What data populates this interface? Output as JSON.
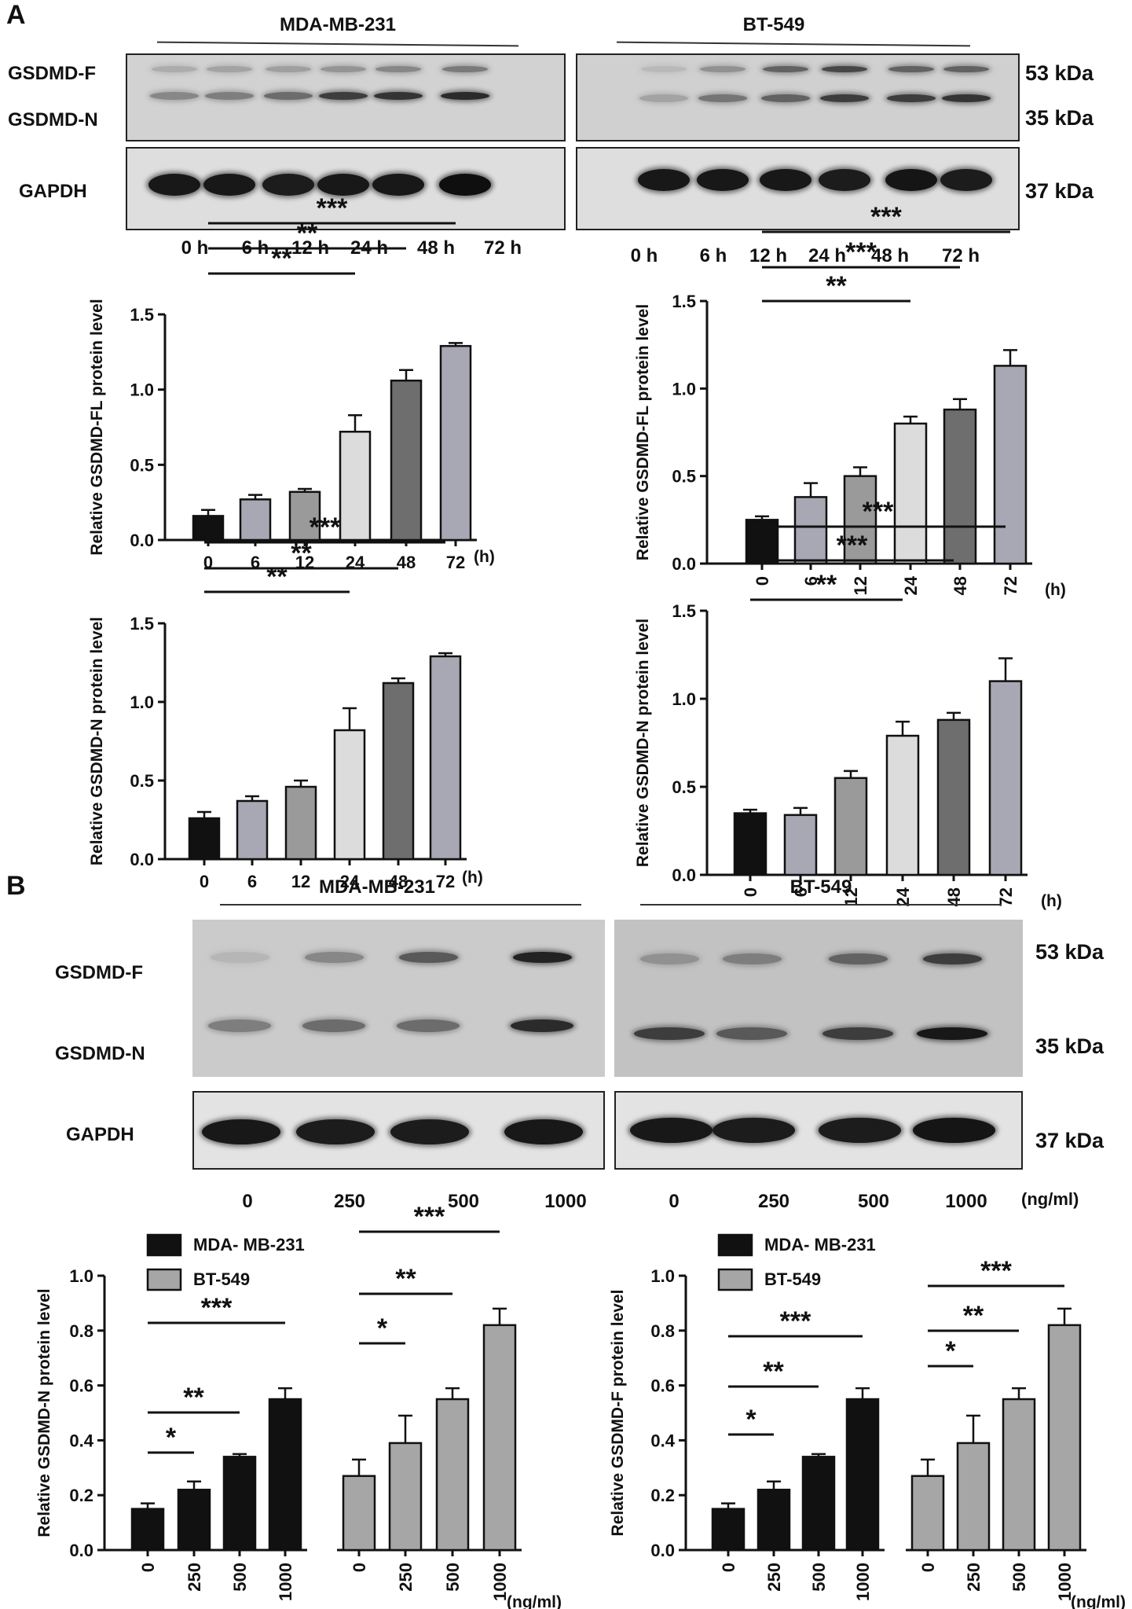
{
  "panel_a": {
    "letter": "A",
    "cell_line_left": "MDA-MB-231",
    "cell_line_right": "BT-549",
    "row_labels": {
      "gsdmd_f": "GSDMD-F",
      "gsdmd_n": "GSDMD-N",
      "gapdh": "GAPDH"
    },
    "kda": {
      "k53": "53 kDa",
      "k35": "35 kDa",
      "k37": "37 kDa"
    },
    "lanes": [
      "0 h",
      "6 h",
      "12 h",
      "24 h",
      "48 h",
      "72 h"
    ],
    "blot_levels": {
      "left_f": [
        0.15,
        0.2,
        0.22,
        0.28,
        0.35,
        0.42
      ],
      "left_n": [
        0.35,
        0.4,
        0.5,
        0.75,
        0.8,
        0.85
      ],
      "left_g": [
        0.95,
        0.95,
        0.93,
        0.95,
        0.95,
        1.0
      ],
      "right_f": [
        0.08,
        0.3,
        0.55,
        0.7,
        0.55,
        0.55
      ],
      "right_n": [
        0.2,
        0.45,
        0.55,
        0.75,
        0.75,
        0.8
      ],
      "right_g": [
        0.95,
        0.95,
        0.95,
        0.93,
        0.97,
        0.93
      ]
    }
  },
  "panel_b": {
    "letter": "B",
    "cell_line_left": "MDA-MB-231",
    "cell_line_right": "BT-549",
    "row_labels": {
      "gsdmd_f": "GSDMD-F",
      "gsdmd_n": "GSDMD-N",
      "gapdh": "GAPDH"
    },
    "kda": {
      "k53": "53 kDa",
      "k35": "35 kDa",
      "k37": "37 kDa"
    },
    "lanes": [
      "0",
      "250",
      "500",
      "1000"
    ],
    "unit": "(ng/ml)",
    "blot_levels": {
      "left_f": [
        0.1,
        0.35,
        0.6,
        0.9
      ],
      "left_n": [
        0.4,
        0.5,
        0.5,
        0.85
      ],
      "left_g": [
        0.95,
        0.93,
        0.93,
        0.95
      ],
      "right_f": [
        0.3,
        0.4,
        0.55,
        0.75
      ],
      "right_n": [
        0.75,
        0.6,
        0.75,
        0.95
      ],
      "right_g": [
        0.95,
        0.93,
        0.93,
        0.97
      ]
    }
  },
  "colors": {
    "black": "#111111",
    "dark_gray": "#6e6e6e",
    "mid_gray": "#9a9a9a",
    "light_gray": "#dcdcdc",
    "lavender_gray": "#a8a8b4",
    "bt549_gray": "#a6a6a6"
  },
  "chart_data": [
    {
      "type": "bar",
      "id": "a-mda-fl",
      "ylabel": "Relative GSDMD-FL protein level",
      "categories": [
        "0",
        "6",
        "12",
        "24",
        "48",
        "72"
      ],
      "unit": "(h)",
      "values": [
        0.16,
        0.27,
        0.32,
        0.72,
        1.06,
        1.29
      ],
      "errors": [
        0.04,
        0.03,
        0.02,
        0.11,
        0.07,
        0.02
      ],
      "bar_colors": [
        "black",
        "lavender_gray",
        "mid_gray",
        "light_gray",
        "dark_gray",
        "lavender_gray"
      ],
      "ylim": [
        0,
        1.5
      ],
      "yticks": [
        "0.0",
        "0.5",
        "1.0",
        "1.5"
      ],
      "significance": [
        {
          "from": 0,
          "to": 5,
          "label": "***"
        },
        {
          "from": 0,
          "to": 4,
          "label": "**"
        },
        {
          "from": 0,
          "to": 3,
          "label": "**"
        }
      ]
    },
    {
      "type": "bar",
      "id": "a-bt-fl",
      "ylabel": "Relative GSDMD-FL protein level",
      "categories": [
        "0",
        "6",
        "12",
        "24",
        "48",
        "72"
      ],
      "unit": "(h)",
      "values": [
        0.25,
        0.38,
        0.5,
        0.8,
        0.88,
        1.13
      ],
      "errors": [
        0.02,
        0.08,
        0.05,
        0.04,
        0.06,
        0.09
      ],
      "bar_colors": [
        "black",
        "lavender_gray",
        "mid_gray",
        "light_gray",
        "dark_gray",
        "lavender_gray"
      ],
      "ylim": [
        0,
        1.5
      ],
      "yticks": [
        "0.0",
        "0.5",
        "1.0",
        "1.5"
      ],
      "significance": [
        {
          "from": 0,
          "to": 5,
          "label": "***"
        },
        {
          "from": 0,
          "to": 4,
          "label": "***"
        },
        {
          "from": 0,
          "to": 3,
          "label": "**"
        }
      ]
    },
    {
      "type": "bar",
      "id": "a-mda-n",
      "ylabel": "Relative GSDMD-N protein level",
      "categories": [
        "0",
        "6",
        "12",
        "24",
        "48",
        "72"
      ],
      "unit": "(h)",
      "values": [
        0.26,
        0.37,
        0.46,
        0.82,
        1.12,
        1.29
      ],
      "errors": [
        0.04,
        0.03,
        0.04,
        0.14,
        0.03,
        0.02
      ],
      "bar_colors": [
        "black",
        "lavender_gray",
        "mid_gray",
        "light_gray",
        "dark_gray",
        "lavender_gray"
      ],
      "ylim": [
        0,
        1.5
      ],
      "yticks": [
        "0.0",
        "0.5",
        "1.0",
        "1.5"
      ],
      "significance": [
        {
          "from": 0,
          "to": 5,
          "label": "***"
        },
        {
          "from": 0,
          "to": 4,
          "label": "**"
        },
        {
          "from": 0,
          "to": 3,
          "label": "**"
        }
      ]
    },
    {
      "type": "bar",
      "id": "a-bt-n",
      "ylabel": "Relative GSDMD-N protein level",
      "categories": [
        "0",
        "6",
        "12",
        "24",
        "48",
        "72"
      ],
      "unit": "(h)",
      "values": [
        0.35,
        0.34,
        0.55,
        0.79,
        0.88,
        1.1
      ],
      "errors": [
        0.02,
        0.04,
        0.04,
        0.08,
        0.04,
        0.13
      ],
      "bar_colors": [
        "black",
        "lavender_gray",
        "mid_gray",
        "light_gray",
        "dark_gray",
        "lavender_gray"
      ],
      "ylim": [
        0,
        1.5
      ],
      "yticks": [
        "0.0",
        "0.5",
        "1.0",
        "1.5"
      ],
      "significance": [
        {
          "from": 0,
          "to": 5,
          "label": "***"
        },
        {
          "from": 0,
          "to": 4,
          "label": "***"
        },
        {
          "from": 0,
          "to": 3,
          "label": "**"
        }
      ]
    },
    {
      "type": "bar",
      "id": "b-n",
      "ylabel": "Relative GSDMD-N protein level",
      "categories": [
        "0",
        "250",
        "500",
        "1000"
      ],
      "unit": "(ng/ml)",
      "legend": [
        "MDA- MB-231",
        "BT-549"
      ],
      "series": [
        {
          "name": "MDA- MB-231",
          "color": "black",
          "values": [
            0.15,
            0.22,
            0.34,
            0.55
          ],
          "errors": [
            0.02,
            0.03,
            0.01,
            0.04
          ],
          "significance": [
            {
              "from": 0,
              "to": 3,
              "label": "***"
            },
            {
              "from": 0,
              "to": 2,
              "label": "**"
            },
            {
              "from": 0,
              "to": 1,
              "label": "*"
            }
          ]
        },
        {
          "name": "BT-549",
          "color": "bt549_gray",
          "values": [
            0.27,
            0.39,
            0.55,
            0.82
          ],
          "errors": [
            0.06,
            0.1,
            0.04,
            0.06
          ],
          "significance": [
            {
              "from": 0,
              "to": 3,
              "label": "***"
            },
            {
              "from": 0,
              "to": 2,
              "label": "**"
            },
            {
              "from": 0,
              "to": 1,
              "label": "*"
            }
          ]
        }
      ],
      "ylim": [
        0,
        1.0
      ],
      "yticks": [
        "0.0",
        "0.2",
        "0.4",
        "0.6",
        "0.8",
        "1.0"
      ]
    },
    {
      "type": "bar",
      "id": "b-f",
      "ylabel": "Relative GSDMD-F protein level",
      "categories": [
        "0",
        "250",
        "500",
        "1000"
      ],
      "unit": "(ng/ml)",
      "legend": [
        "MDA- MB-231",
        "BT-549"
      ],
      "series": [
        {
          "name": "MDA- MB-231",
          "color": "black",
          "values": [
            0.15,
            0.22,
            0.34,
            0.55
          ],
          "errors": [
            0.02,
            0.03,
            0.01,
            0.04
          ],
          "significance": [
            {
              "from": 0,
              "to": 3,
              "label": "***"
            },
            {
              "from": 0,
              "to": 2,
              "label": "**"
            },
            {
              "from": 0,
              "to": 1,
              "label": "*"
            }
          ]
        },
        {
          "name": "BT-549",
          "color": "bt549_gray",
          "values": [
            0.27,
            0.39,
            0.55,
            0.82
          ],
          "errors": [
            0.06,
            0.1,
            0.04,
            0.06
          ],
          "significance": [
            {
              "from": 0,
              "to": 3,
              "label": "***"
            },
            {
              "from": 0,
              "to": 2,
              "label": "**"
            },
            {
              "from": 0,
              "to": 1,
              "label": "*"
            }
          ]
        }
      ],
      "ylim": [
        0,
        1.0
      ],
      "yticks": [
        "0.0",
        "0.2",
        "0.4",
        "0.6",
        "0.8",
        "1.0"
      ]
    }
  ]
}
